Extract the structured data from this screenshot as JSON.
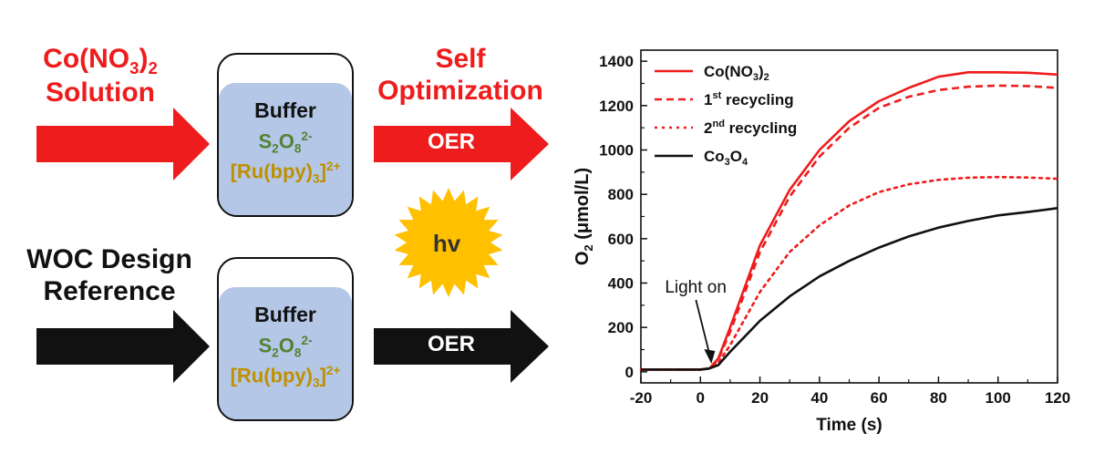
{
  "diagram": {
    "top_left_label": {
      "line1_main": "Co(NO",
      "line1_sub": "3",
      "line1_end": ")",
      "line1_sub2": "2",
      "line2": "Solution"
    },
    "bottom_left_label": {
      "line1": "WOC Design",
      "line2": "Reference"
    },
    "top_right_label": {
      "line1": "Self",
      "line2": "Optimization"
    },
    "oer_top": "OER",
    "oer_bottom": "OER",
    "sun_label": "hv",
    "vessel_top": {
      "buffer": "Buffer",
      "s2o8_s": "S",
      "s2o8_sub": "2",
      "s2o8_o": "O",
      "s2o8_sub2": "8",
      "s2o8_sup": "2-",
      "ru_main": "[Ru(bpy)",
      "ru_sub": "3",
      "ru_end": "]",
      "ru_sup": "2+"
    },
    "vessel_bottom": {
      "buffer": "Buffer",
      "s2o8_s": "S",
      "s2o8_sub": "2",
      "s2o8_o": "O",
      "s2o8_sub2": "8",
      "s2o8_sup": "2-",
      "ru_main": "[Ru(bpy)",
      "ru_sub": "3",
      "ru_end": "]",
      "ru_sup": "2+"
    },
    "colors": {
      "red": "#ee1c1c",
      "black": "#111111",
      "liquid": "#b4c7e7",
      "sun": "#ffc000",
      "green": "#548235",
      "gold": "#bf9000"
    }
  },
  "chart_data": {
    "type": "line",
    "xlabel": "Time (s)",
    "ylabel_main": "O",
    "ylabel_sub": "2",
    "ylabel_rest": " (μmol/L)",
    "xlim": [
      -20,
      120
    ],
    "ylim": [
      -50,
      1450
    ],
    "xticks": [
      -20,
      0,
      20,
      40,
      60,
      80,
      100,
      120
    ],
    "yticks": [
      0,
      200,
      400,
      600,
      800,
      1000,
      1200,
      1400
    ],
    "annotation": {
      "text": "Light on",
      "x": 4,
      "y": 20
    },
    "legend_position": "top-left",
    "series": [
      {
        "name": "Co(NO3)2",
        "legend_main": "Co(NO",
        "legend_sub": "3",
        "legend_end": ")",
        "legend_sub2": "2",
        "legend_sup": "",
        "color": "#ee1c1c",
        "dash": "solid",
        "x": [
          -20,
          0,
          3,
          6,
          10,
          20,
          30,
          40,
          50,
          60,
          70,
          80,
          90,
          100,
          110,
          120
        ],
        "y": [
          10,
          10,
          15,
          60,
          200,
          570,
          820,
          1000,
          1130,
          1220,
          1280,
          1330,
          1350,
          1350,
          1348,
          1340
        ]
      },
      {
        "name": "1st recycling",
        "legend_main": "1",
        "legend_sub": "",
        "legend_end": "",
        "legend_sub2": "",
        "legend_sup": "st",
        "legend_tail": " recycling",
        "color": "#ee1c1c",
        "dash": "dashed",
        "x": [
          -20,
          0,
          3,
          6,
          10,
          20,
          30,
          40,
          50,
          60,
          70,
          80,
          90,
          100,
          110,
          120
        ],
        "y": [
          10,
          10,
          15,
          55,
          180,
          540,
          790,
          970,
          1100,
          1190,
          1240,
          1270,
          1285,
          1290,
          1288,
          1280
        ]
      },
      {
        "name": "2nd recycling",
        "legend_main": "2",
        "legend_sub": "",
        "legend_end": "",
        "legend_sub2": "",
        "legend_sup": "nd",
        "legend_tail": " recycling",
        "color": "#ee1c1c",
        "dash": "dotted",
        "x": [
          -20,
          0,
          3,
          6,
          10,
          20,
          30,
          40,
          50,
          60,
          70,
          80,
          90,
          100,
          110,
          120
        ],
        "y": [
          10,
          10,
          15,
          40,
          120,
          360,
          540,
          660,
          750,
          810,
          845,
          865,
          875,
          878,
          876,
          870
        ]
      },
      {
        "name": "Co3O4",
        "legend_main": "Co",
        "legend_sub": "3",
        "legend_end": "O",
        "legend_sub2": "4",
        "legend_sup": "",
        "color": "#111111",
        "dash": "solid",
        "x": [
          -20,
          0,
          3,
          6,
          10,
          20,
          30,
          40,
          50,
          60,
          70,
          80,
          90,
          100,
          110,
          120
        ],
        "y": [
          10,
          10,
          15,
          30,
          90,
          230,
          340,
          430,
          500,
          560,
          610,
          650,
          680,
          705,
          720,
          738
        ]
      }
    ]
  }
}
